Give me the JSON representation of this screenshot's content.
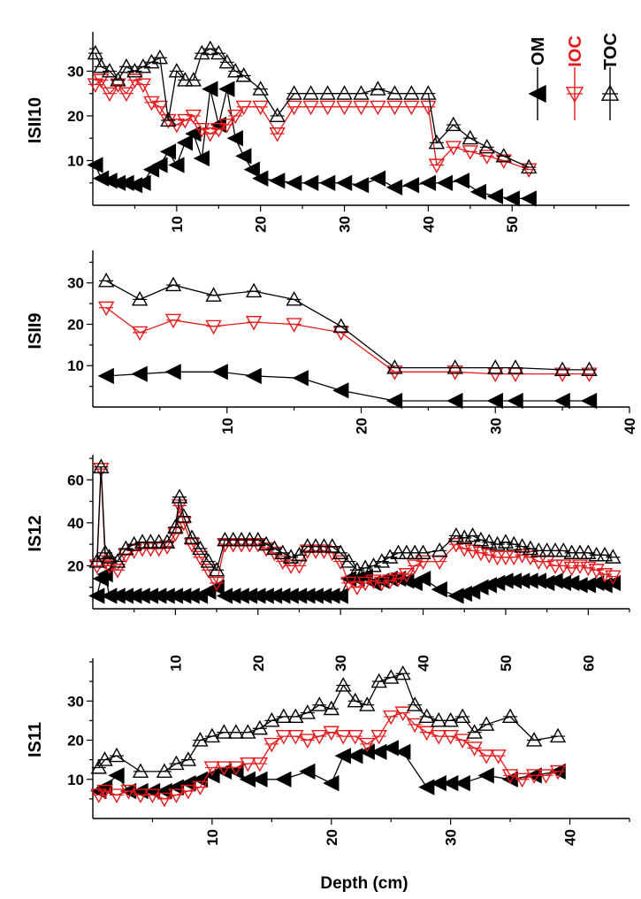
{
  "chart_data": [
    {
      "type": "line",
      "panel_label": "ISII10",
      "xlim": [
        0,
        64
      ],
      "ylim": [
        0,
        38
      ],
      "xticks": [
        10,
        20,
        30,
        40,
        50
      ],
      "yticks": [
        10,
        20,
        30
      ],
      "series": [
        {
          "name": "OM",
          "marker": "left-triangle-filled",
          "color": "#000000",
          "x": [
            0.3,
            1,
            2,
            3,
            4,
            5,
            6,
            7,
            8,
            9,
            10,
            11,
            12,
            13,
            14,
            15,
            16,
            17,
            18,
            19,
            20,
            22,
            24,
            26,
            28,
            30,
            32,
            34,
            36,
            38,
            40,
            42,
            44,
            46,
            48,
            50,
            52
          ],
          "y": [
            9,
            6,
            5.5,
            5,
            5,
            4.5,
            5,
            8,
            9,
            12,
            9,
            14,
            16,
            10.5,
            26,
            18,
            26,
            15,
            11,
            8,
            6,
            5.5,
            5,
            5,
            5,
            5,
            4.5,
            6,
            4,
            4.5,
            5,
            5,
            5.5,
            3,
            2,
            1.5,
            1.5
          ]
        },
        {
          "name": "IOC",
          "marker": "down-triangle-open",
          "color": "#e41a1c",
          "x": [
            0.3,
            1,
            2,
            3,
            4,
            5,
            6,
            7,
            8,
            9,
            10,
            11,
            12,
            13,
            14,
            15,
            16,
            17,
            18,
            20,
            22,
            24,
            26,
            28,
            30,
            32,
            34,
            36,
            38,
            40,
            41,
            43,
            45,
            47,
            49,
            52
          ],
          "y": [
            27,
            28,
            25,
            27,
            25,
            28,
            27,
            23,
            22,
            19,
            18,
            19,
            20,
            17,
            16,
            17,
            18,
            20,
            22,
            22,
            16,
            22,
            22,
            22,
            22,
            22,
            22,
            22,
            22,
            22,
            9,
            13,
            12,
            11,
            10,
            8
          ]
        },
        {
          "name": "TOC",
          "marker": "up-triangle-open",
          "color": "#000000",
          "x": [
            0.3,
            1,
            2,
            3,
            4,
            5,
            6,
            7,
            8,
            9,
            10,
            11,
            12,
            13,
            14,
            15,
            16,
            17,
            18,
            20,
            22,
            24,
            26,
            28,
            30,
            32,
            34,
            36,
            38,
            40,
            41,
            43,
            45,
            47,
            49,
            52
          ],
          "y": [
            34,
            31,
            30,
            28,
            31,
            30,
            31,
            32,
            33,
            19,
            30,
            28,
            28,
            34,
            35,
            34,
            32,
            30,
            29,
            26,
            20,
            25,
            25,
            25,
            25,
            25,
            26,
            25,
            25,
            25,
            14,
            18,
            15,
            13,
            11,
            8.5
          ]
        }
      ]
    },
    {
      "type": "line",
      "panel_label": "ISII9",
      "xlim": [
        0,
        40
      ],
      "ylim": [
        0,
        37
      ],
      "xticks": [
        10,
        20,
        30,
        40
      ],
      "yticks": [
        10,
        20,
        30
      ],
      "series": [
        {
          "name": "OM",
          "marker": "left-triangle-filled",
          "color": "#000000",
          "x": [
            1,
            3.5,
            6,
            9.5,
            12,
            15.5,
            18.5,
            22.5,
            27,
            30,
            31.5,
            35,
            37
          ],
          "y": [
            7.5,
            8,
            8.5,
            8.5,
            7.5,
            7,
            4,
            1.5,
            1.5,
            1.5,
            1.5,
            1.5,
            1.5
          ]
        },
        {
          "name": "IOC",
          "marker": "down-triangle-open",
          "color": "#e41a1c",
          "x": [
            1,
            3.5,
            6,
            9,
            12,
            15,
            18.5,
            22.5,
            27,
            30,
            31.5,
            35,
            37
          ],
          "y": [
            24,
            18,
            21,
            19.5,
            20.5,
            20,
            18,
            8.5,
            8.5,
            8,
            8,
            8,
            8
          ]
        },
        {
          "name": "TOC",
          "marker": "up-triangle-open",
          "color": "#000000",
          "x": [
            1,
            3.5,
            6,
            9,
            12,
            15,
            18.5,
            22.5,
            27,
            30,
            31.5,
            35,
            37
          ],
          "y": [
            30.5,
            26,
            29.5,
            27,
            28,
            26,
            19.5,
            9.5,
            9.5,
            9.5,
            9.5,
            9,
            9
          ]
        }
      ]
    },
    {
      "type": "line",
      "panel_label": "IS12",
      "xlim": [
        0,
        65
      ],
      "ylim": [
        0,
        70
      ],
      "xticks": [
        10,
        20,
        30,
        40,
        50,
        60
      ],
      "yticks": [
        20,
        40,
        60
      ],
      "series": [
        {
          "name": "OM",
          "marker": "left-triangle-filled",
          "color": "#000000",
          "x": [
            0.5,
            1,
            1.5,
            2,
            3,
            4,
            5,
            6,
            7,
            8,
            9,
            10,
            11,
            12,
            13,
            14,
            15,
            16,
            17,
            18,
            19,
            20,
            21,
            22,
            23,
            24,
            25,
            26,
            27,
            28,
            29,
            30,
            31,
            32,
            33,
            34,
            35,
            36,
            37,
            38,
            39,
            40,
            42,
            44,
            45,
            46,
            47,
            48,
            49,
            50,
            51,
            52,
            53,
            54,
            55,
            56,
            57,
            58,
            59,
            60,
            61,
            62,
            63
          ],
          "y": [
            6,
            14,
            16,
            6,
            6,
            6,
            6,
            6,
            6,
            6,
            6,
            6,
            6,
            6,
            6,
            8,
            10,
            6,
            6,
            6,
            6,
            6,
            6,
            6,
            6,
            6,
            6,
            6,
            6,
            6,
            6,
            6,
            14,
            14,
            15,
            12,
            13,
            14,
            14,
            13,
            12,
            14,
            9,
            6,
            7,
            8,
            10,
            11,
            12,
            13,
            13,
            13,
            13,
            13,
            12,
            13,
            12,
            12,
            11,
            11,
            12,
            11,
            12
          ]
        },
        {
          "name": "IOC",
          "marker": "down-triangle-open",
          "color": "#e41a1c",
          "x": [
            0.5,
            1,
            1.5,
            2,
            3,
            4,
            5,
            6,
            7,
            8,
            9,
            10,
            10.5,
            11,
            12,
            13,
            14,
            15,
            16,
            17,
            18,
            19,
            20,
            21,
            22,
            23,
            24,
            25,
            26,
            27,
            28,
            29,
            30,
            31,
            32,
            33,
            34,
            35,
            36,
            37,
            38,
            39,
            40,
            42,
            44,
            45,
            46,
            47,
            48,
            49,
            50,
            51,
            52,
            53,
            54,
            55,
            56,
            57,
            58,
            59,
            60,
            61,
            62,
            63
          ],
          "y": [
            20,
            65,
            22,
            20,
            18,
            25,
            27,
            28,
            28,
            28,
            29,
            35,
            48,
            40,
            30,
            24,
            18,
            12,
            30,
            30,
            30,
            30,
            30,
            28,
            26,
            22,
            20,
            20,
            27,
            27,
            27,
            26,
            22,
            12,
            10,
            12,
            13,
            12,
            13,
            14,
            16,
            20,
            22,
            22,
            30,
            28,
            27,
            26,
            25,
            24,
            24,
            24,
            25,
            24,
            22,
            22,
            20,
            20,
            19,
            20,
            19,
            18,
            16,
            15
          ]
        },
        {
          "name": "TOC",
          "marker": "up-triangle-open",
          "color": "#000000",
          "x": [
            0.5,
            1,
            1.5,
            2,
            3,
            4,
            5,
            6,
            7,
            8,
            9,
            10,
            10.5,
            11,
            12,
            13,
            14,
            15,
            16,
            17,
            18,
            19,
            20,
            21,
            22,
            23,
            24,
            25,
            26,
            27,
            28,
            29,
            30,
            31,
            32,
            33,
            34,
            35,
            36,
            37,
            38,
            39,
            40,
            42,
            44,
            45,
            46,
            47,
            48,
            49,
            50,
            51,
            52,
            53,
            54,
            55,
            56,
            57,
            58,
            59,
            60,
            61,
            62,
            63
          ],
          "y": [
            22,
            66,
            26,
            24,
            22,
            28,
            30,
            31,
            31,
            31,
            31,
            38,
            52,
            43,
            33,
            28,
            22,
            18,
            32,
            32,
            32,
            32,
            32,
            30,
            28,
            26,
            24,
            25,
            29,
            29,
            29,
            29,
            26,
            22,
            18,
            19,
            20,
            22,
            24,
            26,
            26,
            26,
            26,
            27,
            34,
            33,
            34,
            32,
            31,
            30,
            31,
            30,
            29,
            28,
            27,
            27,
            27,
            27,
            26,
            26,
            26,
            25,
            25,
            24
          ]
        }
      ]
    },
    {
      "type": "line",
      "panel_label": "IS11",
      "xlabel": "Depth (cm)",
      "xlim": [
        0,
        45
      ],
      "ylim": [
        0,
        40
      ],
      "xticks": [
        10,
        20,
        30,
        40
      ],
      "yticks": [
        10,
        20,
        30
      ],
      "series": [
        {
          "name": "OM",
          "marker": "left-triangle-filled",
          "color": "#000000",
          "x": [
            0.5,
            1,
            2,
            3,
            4,
            5,
            6,
            7,
            8,
            9,
            10,
            11,
            12,
            13,
            14,
            16,
            18,
            20,
            21,
            22,
            23,
            24,
            25,
            26,
            28,
            29,
            30,
            31,
            33,
            35,
            37,
            39
          ],
          "y": [
            7,
            8,
            11,
            7,
            7,
            7,
            7,
            8,
            9,
            10,
            11,
            12,
            12,
            10,
            10,
            10,
            12,
            9,
            16,
            16,
            17,
            17,
            18,
            17,
            8,
            9,
            9,
            9,
            11,
            10,
            11,
            12
          ]
        },
        {
          "name": "IOC",
          "marker": "down-triangle-open",
          "color": "#e41a1c",
          "x": [
            0.5,
            1,
            2,
            3,
            4,
            5,
            6,
            7,
            8,
            9,
            10,
            11,
            12,
            13,
            14,
            15,
            16,
            17,
            18,
            19,
            20,
            21,
            22,
            23,
            24,
            25,
            26,
            27,
            28,
            29,
            30,
            31,
            32,
            33,
            34,
            35,
            36,
            37,
            38,
            39
          ],
          "y": [
            6,
            7,
            6,
            7,
            6,
            6,
            5,
            6,
            7,
            8,
            13,
            13,
            13,
            14,
            14,
            19,
            21,
            21,
            20,
            21,
            22,
            21,
            21,
            19,
            21,
            26,
            27,
            24,
            22,
            21,
            21,
            20,
            18,
            16,
            16,
            11,
            10,
            11,
            11,
            12
          ]
        },
        {
          "name": "TOC",
          "marker": "up-triangle-open",
          "color": "#000000",
          "x": [
            0.5,
            1,
            2,
            4,
            6,
            7,
            8,
            9,
            10,
            11,
            12,
            13,
            14,
            15,
            16,
            17,
            18,
            19,
            20,
            21,
            22,
            23,
            24,
            25,
            26,
            27,
            28,
            29,
            30,
            31,
            32,
            33,
            35,
            37,
            39
          ],
          "y": [
            13,
            15,
            16,
            12,
            12,
            14,
            15,
            20,
            21,
            22,
            22,
            22,
            23,
            25,
            26,
            26,
            27,
            29,
            28,
            34,
            30,
            29,
            35,
            36,
            37,
            29,
            26,
            25,
            25,
            26,
            22,
            24,
            26,
            20,
            21
          ]
        }
      ]
    }
  ],
  "legend": {
    "entries": [
      {
        "label": "OM",
        "marker": "left-triangle-filled",
        "color": "#000000"
      },
      {
        "label": "IOC",
        "marker": "down-triangle-open",
        "color": "#e41a1c"
      },
      {
        "label": "TOC",
        "marker": "up-triangle-open",
        "color": "#000000"
      }
    ],
    "placement": "top-right"
  }
}
